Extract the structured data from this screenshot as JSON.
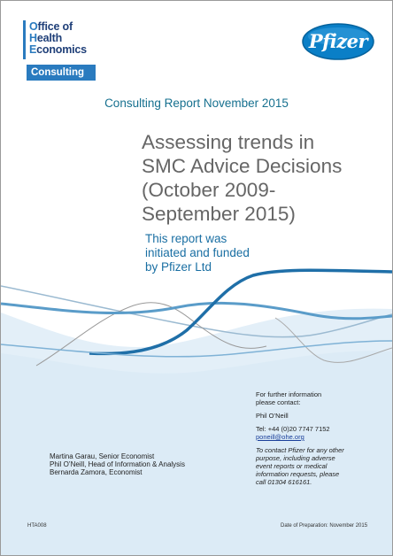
{
  "logos": {
    "ohe_lines": [
      "Office of",
      "Health",
      "Economics"
    ],
    "ohe_initials": [
      "O",
      "H",
      "E"
    ],
    "ohe_rest": [
      "ffice of",
      "ealth",
      "conomics"
    ],
    "ohe_consulting": "Consulting",
    "pfizer": "Pfizer"
  },
  "report_line": "Consulting Report November 2015",
  "title_lines": [
    "Assessing trends in",
    "SMC Advice Decisions",
    "(October 2009-",
    "September 2015)"
  ],
  "funded_lines": [
    "This report was",
    "initiated and funded",
    "by Pfizer Ltd"
  ],
  "authors": [
    "Martina Garau, Senior Economist",
    "Phil O’Neill, Head of Information & Analysis",
    "Bernarda Zamora, Economist"
  ],
  "contact": {
    "intro_lines": [
      "For further information",
      "please contact:"
    ],
    "name": "Phil O’Neill",
    "tel": "Tel: +44 (0)20 7747 7152",
    "email": "poneill@ohe.org",
    "note_lines": [
      "To contact Pfizer for any other",
      "purpose, including adverse",
      "event reports or medical",
      "information requests, please",
      "call 01304 616161."
    ]
  },
  "footer": {
    "code": "HTA008",
    "prep": "Date of Preparation: November 2015"
  },
  "colors": {
    "ohe_blue": "#2a7bbf",
    "ohe_navy": "#1f3f78",
    "pfizer_blue": "#0a7fc7",
    "teal_text": "#16708f",
    "wave_dark": "#1f6fa8",
    "wave_light": "#5a9cc9",
    "background_fill": "#e3eff8"
  }
}
